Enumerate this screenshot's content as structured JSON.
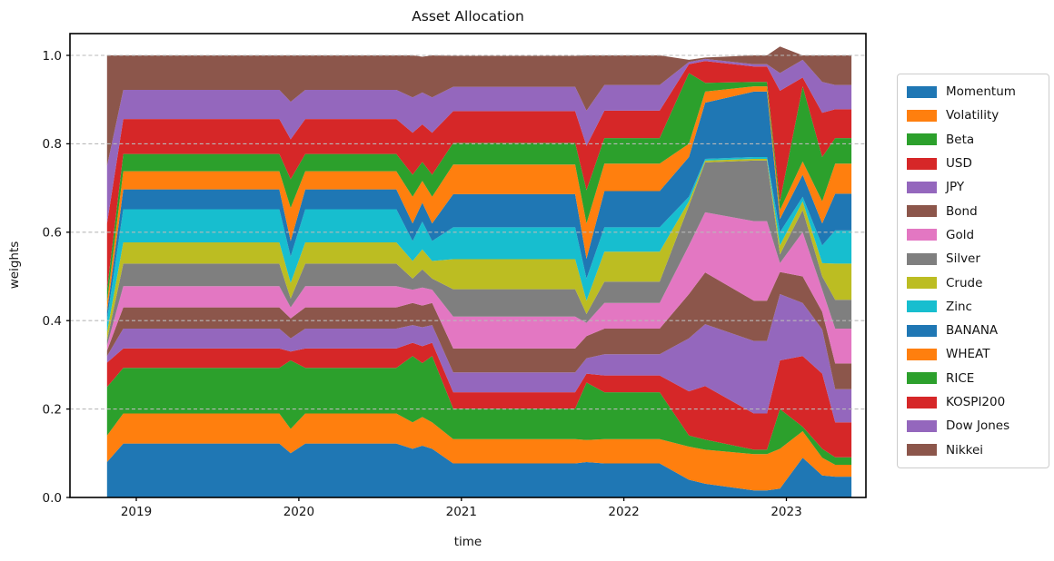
{
  "title": "Asset Allocation",
  "axes": {
    "xlabel": "time",
    "ylabel": "weights"
  },
  "chart_data": {
    "type": "area",
    "stacked": true,
    "title": "Asset Allocation",
    "xlabel": "time",
    "ylabel": "weights",
    "grid": "horizontal-dashed",
    "grid_color": "#b9b9b9",
    "legend_position": "outside-right",
    "xlim": [
      2018.592,
      2023.489
    ],
    "ylim": [
      0,
      1.0493
    ],
    "xticks": [
      2019,
      2020,
      2021,
      2022,
      2023
    ],
    "yticks": [
      0.0,
      0.2,
      0.4,
      0.6,
      0.8,
      1.0
    ],
    "x": [
      2018.82,
      2018.92,
      2019.88,
      2019.95,
      2020.04,
      2020.6,
      2020.7,
      2020.76,
      2020.82,
      2020.95,
      2021.7,
      2021.77,
      2021.88,
      2022.22,
      2022.4,
      2022.5,
      2022.8,
      2022.88,
      2022.96,
      2023.1,
      2023.22,
      2023.3,
      2023.4
    ],
    "series": [
      {
        "name": "Momentum",
        "color": "#1f77b4",
        "values": [
          0.08,
          0.122,
          0.122,
          0.1,
          0.122,
          0.122,
          0.11,
          0.117,
          0.11,
          0.077,
          0.077,
          0.08,
          0.077,
          0.077,
          0.04,
          0.031,
          0.016,
          0.016,
          0.02,
          0.09,
          0.05,
          0.047,
          0.047
        ]
      },
      {
        "name": "Volatility",
        "color": "#ff7f0e",
        "values": [
          0.06,
          0.068,
          0.068,
          0.055,
          0.068,
          0.068,
          0.06,
          0.065,
          0.06,
          0.055,
          0.055,
          0.05,
          0.055,
          0.055,
          0.075,
          0.077,
          0.082,
          0.082,
          0.09,
          0.06,
          0.04,
          0.027,
          0.027
        ]
      },
      {
        "name": "Beta",
        "color": "#2ca02c",
        "values": [
          0.11,
          0.103,
          0.103,
          0.155,
          0.103,
          0.103,
          0.15,
          0.122,
          0.15,
          0.069,
          0.069,
          0.13,
          0.106,
          0.106,
          0.025,
          0.023,
          0.01,
          0.01,
          0.09,
          0.01,
          0.02,
          0.017,
          0.017
        ]
      },
      {
        "name": "USD",
        "color": "#d62728",
        "values": [
          0.055,
          0.044,
          0.044,
          0.02,
          0.044,
          0.044,
          0.03,
          0.038,
          0.03,
          0.037,
          0.037,
          0.02,
          0.038,
          0.038,
          0.1,
          0.121,
          0.082,
          0.082,
          0.11,
          0.16,
          0.17,
          0.079,
          0.079
        ]
      },
      {
        "name": "JPY",
        "color": "#9467bd",
        "values": [
          0.015,
          0.045,
          0.045,
          0.03,
          0.045,
          0.045,
          0.04,
          0.043,
          0.04,
          0.045,
          0.045,
          0.035,
          0.048,
          0.048,
          0.12,
          0.14,
          0.164,
          0.164,
          0.15,
          0.12,
          0.1,
          0.075,
          0.075
        ]
      },
      {
        "name": "Bond",
        "color": "#8c564b",
        "values": [
          0.012,
          0.048,
          0.048,
          0.045,
          0.048,
          0.048,
          0.05,
          0.049,
          0.05,
          0.054,
          0.054,
          0.05,
          0.058,
          0.058,
          0.1,
          0.117,
          0.091,
          0.091,
          0.05,
          0.06,
          0.04,
          0.058,
          0.058
        ]
      },
      {
        "name": "Gold",
        "color": "#e377c2",
        "values": [
          0.012,
          0.048,
          0.048,
          0.025,
          0.048,
          0.048,
          0.03,
          0.041,
          0.03,
          0.072,
          0.072,
          0.03,
          0.058,
          0.058,
          0.11,
          0.136,
          0.18,
          0.18,
          0.02,
          0.1,
          0.05,
          0.079,
          0.079
        ]
      },
      {
        "name": "Silver",
        "color": "#7f7f7f",
        "values": [
          0.012,
          0.051,
          0.051,
          0.02,
          0.051,
          0.051,
          0.025,
          0.041,
          0.025,
          0.062,
          0.062,
          0.02,
          0.048,
          0.048,
          0.09,
          0.113,
          0.137,
          0.137,
          0.02,
          0.05,
          0.03,
          0.065,
          0.065
        ]
      },
      {
        "name": "Crude",
        "color": "#bcbd22",
        "values": [
          0.018,
          0.048,
          0.048,
          0.035,
          0.048,
          0.048,
          0.04,
          0.045,
          0.04,
          0.068,
          0.068,
          0.03,
          0.068,
          0.068,
          0.01,
          0.004,
          0.004,
          0.004,
          0.02,
          0.02,
          0.03,
          0.082,
          0.082
        ]
      },
      {
        "name": "Zinc",
        "color": "#17becf",
        "values": [
          0.028,
          0.075,
          0.075,
          0.06,
          0.075,
          0.075,
          0.045,
          0.063,
          0.045,
          0.072,
          0.072,
          0.05,
          0.055,
          0.055,
          0.01,
          0.004,
          0.004,
          0.004,
          0.03,
          0.01,
          0.04,
          0.075,
          0.075
        ]
      },
      {
        "name": "BANANA",
        "color": "#1f77b4",
        "values": [
          0.018,
          0.045,
          0.045,
          0.035,
          0.045,
          0.045,
          0.04,
          0.043,
          0.04,
          0.075,
          0.075,
          0.045,
          0.082,
          0.082,
          0.09,
          0.127,
          0.148,
          0.148,
          0.03,
          0.05,
          0.05,
          0.083,
          0.083
        ]
      },
      {
        "name": "WHEAT",
        "color": "#ff7f0e",
        "values": [
          0.022,
          0.041,
          0.041,
          0.075,
          0.041,
          0.041,
          0.06,
          0.049,
          0.06,
          0.067,
          0.067,
          0.08,
          0.062,
          0.062,
          0.03,
          0.025,
          0.012,
          0.012,
          0.02,
          0.03,
          0.05,
          0.068,
          0.068
        ]
      },
      {
        "name": "RICE",
        "color": "#2ca02c",
        "values": [
          0.028,
          0.039,
          0.039,
          0.065,
          0.039,
          0.039,
          0.05,
          0.043,
          0.05,
          0.049,
          0.049,
          0.075,
          0.058,
          0.058,
          0.16,
          0.02,
          0.01,
          0.01,
          0.02,
          0.17,
          0.1,
          0.058,
          0.058
        ]
      },
      {
        "name": "KOSPI200",
        "color": "#d62728",
        "values": [
          0.15,
          0.079,
          0.079,
          0.09,
          0.079,
          0.079,
          0.095,
          0.085,
          0.095,
          0.072,
          0.072,
          0.1,
          0.062,
          0.062,
          0.02,
          0.049,
          0.035,
          0.035,
          0.25,
          0.02,
          0.1,
          0.065,
          0.065
        ]
      },
      {
        "name": "Dow Jones",
        "color": "#9467bd",
        "values": [
          0.13,
          0.066,
          0.066,
          0.085,
          0.066,
          0.066,
          0.08,
          0.072,
          0.08,
          0.055,
          0.055,
          0.08,
          0.058,
          0.058,
          0.005,
          0.005,
          0.005,
          0.005,
          0.04,
          0.04,
          0.07,
          0.055,
          0.055
        ]
      },
      {
        "name": "Nikkei",
        "color": "#8c564b",
        "values": [
          0.25,
          0.078,
          0.078,
          0.105,
          0.078,
          0.078,
          0.095,
          0.081,
          0.095,
          0.07,
          0.07,
          0.125,
          0.067,
          0.067,
          0.005,
          0.003,
          0.02,
          0.02,
          0.06,
          0.01,
          0.06,
          0.067,
          0.067
        ]
      }
    ]
  }
}
